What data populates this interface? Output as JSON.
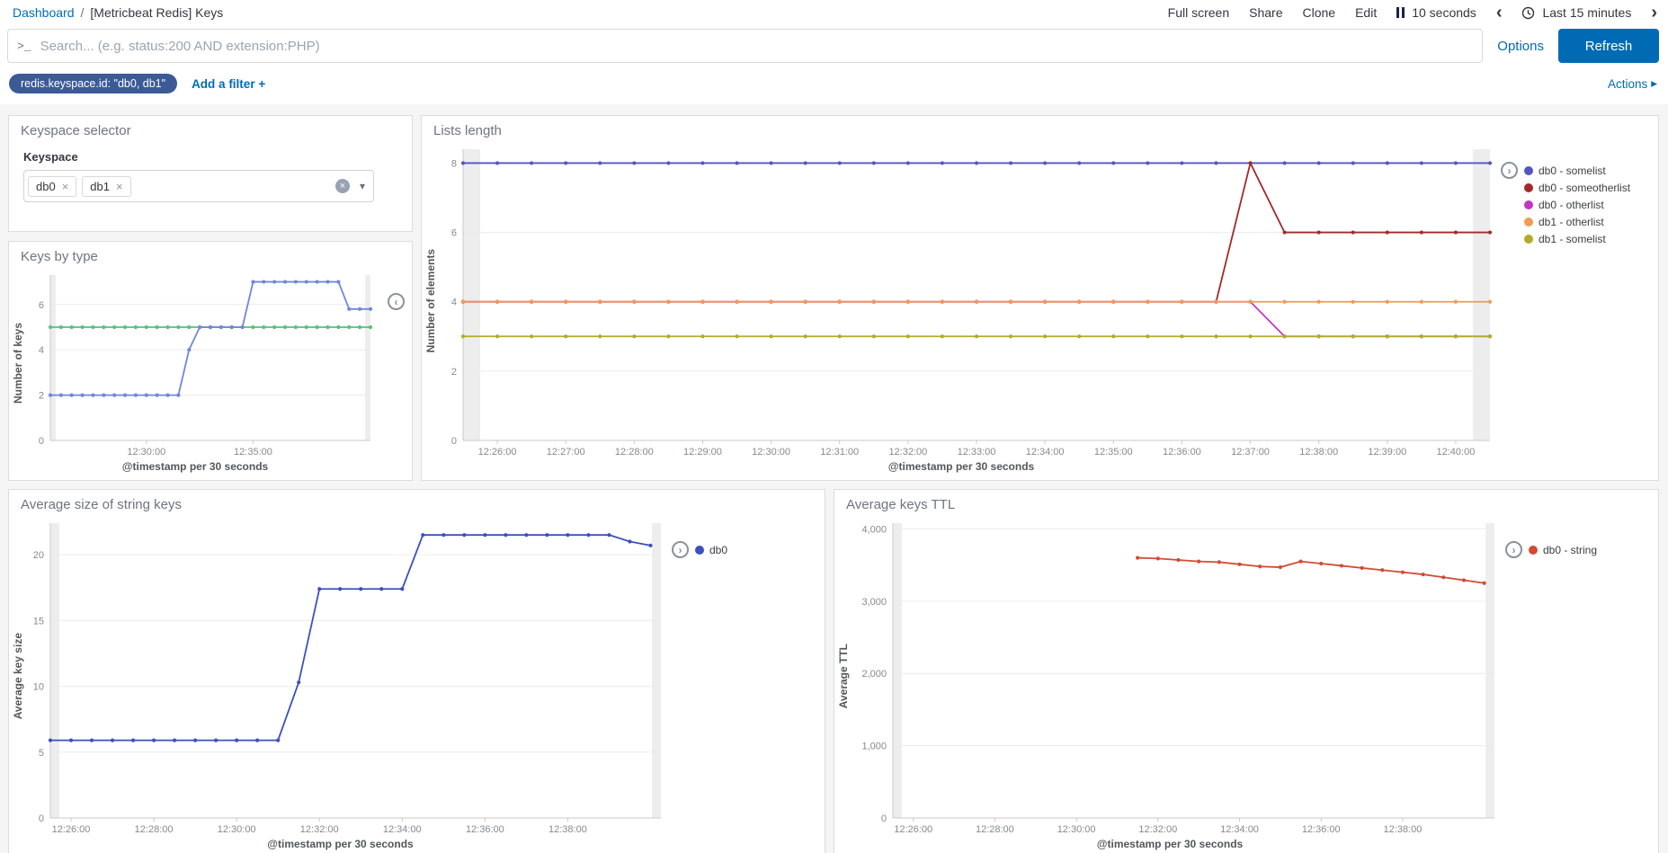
{
  "topnav": {
    "breadcrumb": {
      "link": "Dashboard",
      "separator": "/",
      "current": "[Metricbeat Redis] Keys"
    },
    "menu": {
      "full_screen": "Full screen",
      "share": "Share",
      "clone": "Clone",
      "edit": "Edit"
    },
    "auto_refresh": {
      "interval": "10 seconds"
    },
    "timepicker": {
      "prev_icon": "‹",
      "range_label": "Last 15 minutes",
      "next_icon": "›"
    }
  },
  "search_bar": {
    "prompt_icon": ">_",
    "placeholder": "Search... (e.g. status:200 AND extension:PHP)",
    "value": "",
    "options_label": "Options",
    "refresh_label": "Refresh"
  },
  "filter_bar": {
    "pill_label": "redis.keyspace.id: \"db0, db1\"",
    "add_filter_label": "Add a filter +",
    "actions_label": "Actions",
    "actions_icon": "▸"
  },
  "panels": {
    "keyspace_selector": {
      "title": "Keyspace selector",
      "field_label": "Keyspace",
      "tags": [
        "db0",
        "db1"
      ],
      "tag_remove_icon": "×",
      "clear_icon": "×",
      "caret_icon": "▾"
    },
    "lists_length": {
      "title": "Lists length"
    },
    "keys_by_type": {
      "title": "Keys by type"
    },
    "avg_size": {
      "title": "Average size of string keys"
    },
    "avg_ttl": {
      "title": "Average keys TTL"
    }
  },
  "colors": {
    "accent_blue": "#006bb4",
    "filter_pill": "#3b5a96",
    "endzone": "#000000"
  },
  "chart_data": [
    {
      "id": "lists_length",
      "type": "line",
      "title": "Lists length",
      "xlabel": "@timestamp per 30 seconds",
      "ylabel": "Number of elements",
      "x_unit": "seconds since 12:25:30",
      "xlim": [
        0,
        900
      ],
      "ylim": [
        0,
        8.4
      ],
      "legend_position": "right",
      "legend_toggle_icon": "›",
      "grid": true,
      "endzones": [
        [
          0,
          15
        ],
        [
          885,
          900
        ]
      ],
      "xticks": [
        {
          "v": 30,
          "label": "12:26:00"
        },
        {
          "v": 90,
          "label": "12:27:00"
        },
        {
          "v": 150,
          "label": "12:28:00"
        },
        {
          "v": 210,
          "label": "12:29:00"
        },
        {
          "v": 270,
          "label": "12:30:00"
        },
        {
          "v": 330,
          "label": "12:31:00"
        },
        {
          "v": 390,
          "label": "12:32:00"
        },
        {
          "v": 450,
          "label": "12:33:00"
        },
        {
          "v": 510,
          "label": "12:34:00"
        },
        {
          "v": 570,
          "label": "12:35:00"
        },
        {
          "v": 630,
          "label": "12:36:00"
        },
        {
          "v": 690,
          "label": "12:37:00"
        },
        {
          "v": 750,
          "label": "12:38:00"
        },
        {
          "v": 810,
          "label": "12:39:00"
        },
        {
          "v": 870,
          "label": "12:40:00"
        }
      ],
      "yticks": [
        {
          "v": 0,
          "label": "0"
        },
        {
          "v": 2,
          "label": "2"
        },
        {
          "v": 4,
          "label": "4"
        },
        {
          "v": 6,
          "label": "6"
        },
        {
          "v": 8,
          "label": "8"
        }
      ],
      "series": [
        {
          "name": "db0 - somelist",
          "color": "#5355c0",
          "start": 0,
          "step": 30,
          "values": [
            8,
            8,
            8,
            8,
            8,
            8,
            8,
            8,
            8,
            8,
            8,
            8,
            8,
            8,
            8,
            8,
            8,
            8,
            8,
            8,
            8,
            8,
            8,
            8,
            8,
            8,
            8,
            8,
            8,
            8,
            8
          ]
        },
        {
          "name": "db0 - someotherlist",
          "color": "#a32929",
          "start": 0,
          "step": 30,
          "values": [
            4,
            4,
            4,
            4,
            4,
            4,
            4,
            4,
            4,
            4,
            4,
            4,
            4,
            4,
            4,
            4,
            4,
            4,
            4,
            4,
            4,
            4,
            4,
            8,
            6,
            6,
            6,
            6,
            6,
            6,
            6
          ]
        },
        {
          "name": "db0 - otherlist",
          "color": "#c435c4",
          "start": 0,
          "step": 30,
          "values": [
            4,
            4,
            4,
            4,
            4,
            4,
            4,
            4,
            4,
            4,
            4,
            4,
            4,
            4,
            4,
            4,
            4,
            4,
            4,
            4,
            4,
            4,
            4,
            4,
            3,
            3,
            3,
            3,
            3,
            3,
            3
          ]
        },
        {
          "name": "db1 - otherlist",
          "color": "#ef9d51",
          "start": 0,
          "step": 30,
          "values": [
            4,
            4,
            4,
            4,
            4,
            4,
            4,
            4,
            4,
            4,
            4,
            4,
            4,
            4,
            4,
            4,
            4,
            4,
            4,
            4,
            4,
            4,
            4,
            4,
            4,
            4,
            4,
            4,
            4,
            4,
            4
          ]
        },
        {
          "name": "db1 - somelist",
          "color": "#b3aa2b",
          "start": 0,
          "step": 30,
          "values": [
            3,
            3,
            3,
            3,
            3,
            3,
            3,
            3,
            3,
            3,
            3,
            3,
            3,
            3,
            3,
            3,
            3,
            3,
            3,
            3,
            3,
            3,
            3,
            3,
            3,
            3,
            3,
            3,
            3,
            3,
            3
          ]
        }
      ]
    },
    {
      "id": "keys_by_type",
      "type": "line",
      "title": "Keys by type",
      "xlabel": "@timestamp per 30 seconds",
      "ylabel": "Number of keys",
      "x_unit": "seconds since 12:25:30",
      "xlim": [
        0,
        900
      ],
      "ylim": [
        0,
        7.3
      ],
      "legend_position": "collapsed",
      "legend_toggle_icon": "‹",
      "grid": true,
      "endzones": [
        [
          0,
          15
        ],
        [
          885,
          900
        ]
      ],
      "xticks": [
        {
          "v": 270,
          "label": "12:30:00"
        },
        {
          "v": 570,
          "label": "12:35:00"
        }
      ],
      "yticks": [
        {
          "v": 0,
          "label": "0"
        },
        {
          "v": 2,
          "label": "2"
        },
        {
          "v": 4,
          "label": "4"
        },
        {
          "v": 6,
          "label": "6"
        }
      ],
      "series": [
        {
          "name": "",
          "color": "#57c17b",
          "start": 0,
          "step": 30,
          "values": [
            5,
            5,
            5,
            5,
            5,
            5,
            5,
            5,
            5,
            5,
            5,
            5,
            5,
            5,
            5,
            5,
            5,
            5,
            5,
            5,
            5,
            5,
            5,
            5,
            5,
            5,
            5,
            5,
            5,
            5,
            5
          ]
        },
        {
          "name": "",
          "color": "#6f87d8",
          "start": 0,
          "step": 30,
          "values": [
            2,
            2,
            2,
            2,
            2,
            2,
            2,
            2,
            2,
            2,
            2,
            2,
            2,
            4,
            5,
            5,
            5,
            5,
            5,
            7,
            7,
            7,
            7,
            7,
            7,
            7,
            7,
            7,
            5.8,
            5.8,
            5.8
          ]
        }
      ]
    },
    {
      "id": "avg_size",
      "type": "line",
      "title": "Average size of string keys",
      "xlabel": "@timestamp per 30 seconds",
      "ylabel": "Average key size",
      "x_unit": "seconds since 12:25:30",
      "xlim": [
        0,
        885
      ],
      "ylim": [
        0,
        22.4
      ],
      "legend_position": "right",
      "legend_toggle_icon": "›",
      "grid": true,
      "endzones": [
        [
          0,
          13
        ],
        [
          872,
          885
        ]
      ],
      "xticks": [
        {
          "v": 30,
          "label": "12:26:00"
        },
        {
          "v": 150,
          "label": "12:28:00"
        },
        {
          "v": 270,
          "label": "12:30:00"
        },
        {
          "v": 390,
          "label": "12:32:00"
        },
        {
          "v": 510,
          "label": "12:34:00"
        },
        {
          "v": 630,
          "label": "12:36:00"
        },
        {
          "v": 750,
          "label": "12:38:00"
        }
      ],
      "yticks": [
        {
          "v": 0,
          "label": "0"
        },
        {
          "v": 5,
          "label": "5"
        },
        {
          "v": 10,
          "label": "10"
        },
        {
          "v": 15,
          "label": "15"
        },
        {
          "v": 20,
          "label": "20"
        }
      ],
      "series": [
        {
          "name": "db0",
          "color": "#3b50bc",
          "start": 0,
          "step": 30,
          "values": [
            5.9,
            5.9,
            5.9,
            5.9,
            5.9,
            5.9,
            5.9,
            5.9,
            5.9,
            5.9,
            5.9,
            5.9,
            10.3,
            17.4,
            17.4,
            17.4,
            17.4,
            17.4,
            21.5,
            21.5,
            21.5,
            21.5,
            21.5,
            21.5,
            21.5,
            21.5,
            21.5,
            21.5,
            21,
            20.7
          ]
        }
      ]
    },
    {
      "id": "avg_ttl",
      "type": "line",
      "title": "Average keys TTL",
      "xlabel": "@timestamp per 30 seconds",
      "ylabel": "Average TTL",
      "x_unit": "seconds since 12:25:30",
      "xlim": [
        0,
        885
      ],
      "ylim": [
        0,
        4080
      ],
      "legend_position": "right",
      "legend_toggle_icon": "›",
      "grid": true,
      "endzones": [
        [
          0,
          13
        ],
        [
          872,
          885
        ]
      ],
      "xticks": [
        {
          "v": 30,
          "label": "12:26:00"
        },
        {
          "v": 150,
          "label": "12:28:00"
        },
        {
          "v": 270,
          "label": "12:30:00"
        },
        {
          "v": 390,
          "label": "12:32:00"
        },
        {
          "v": 510,
          "label": "12:34:00"
        },
        {
          "v": 630,
          "label": "12:36:00"
        },
        {
          "v": 750,
          "label": "12:38:00"
        }
      ],
      "yticks": [
        {
          "v": 0,
          "label": "0"
        },
        {
          "v": 1000,
          "label": "1,000"
        },
        {
          "v": 2000,
          "label": "2,000"
        },
        {
          "v": 3000,
          "label": "3,000"
        },
        {
          "v": 4000,
          "label": "4,000"
        }
      ],
      "series": [
        {
          "name": "db0 - string",
          "color": "#d24b35",
          "start": 360,
          "step": 30,
          "values": [
            3600,
            3590,
            3570,
            3550,
            3540,
            3510,
            3480,
            3470,
            3550,
            3520,
            3490,
            3460,
            3430,
            3400,
            3370,
            3330,
            3290,
            3250
          ]
        }
      ]
    }
  ]
}
